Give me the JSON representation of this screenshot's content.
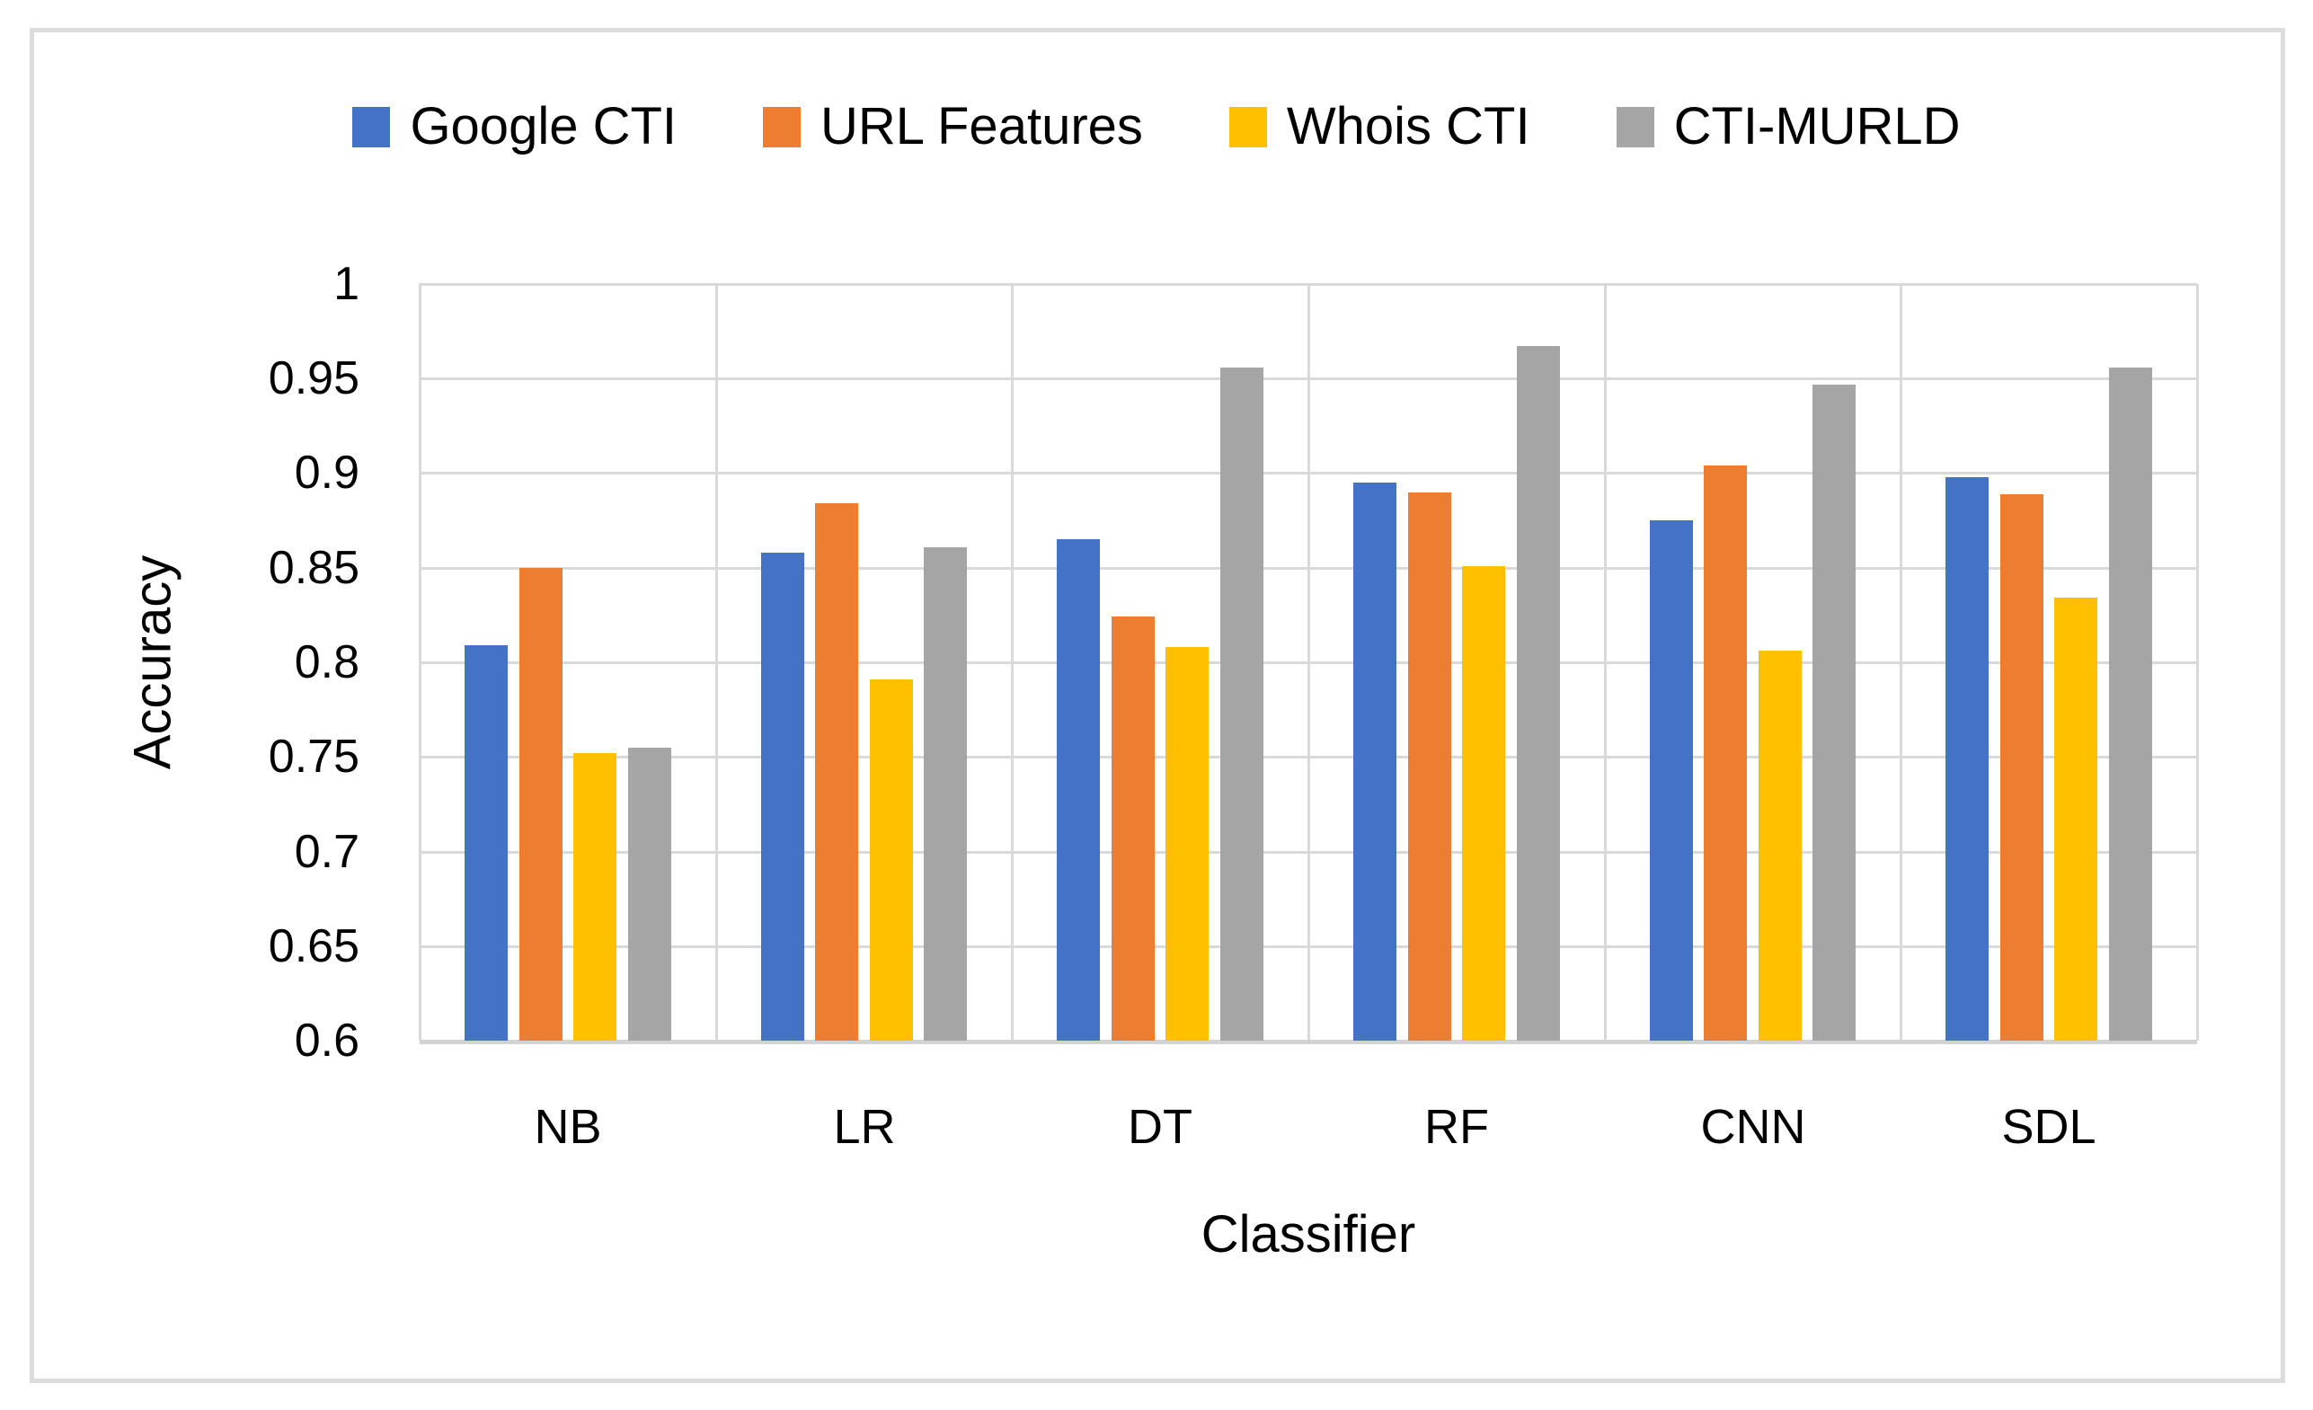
{
  "chart_data": {
    "type": "bar",
    "title": "",
    "xlabel": "Classifier",
    "ylabel": "Accuracy",
    "categories": [
      "NB",
      "LR",
      "DT",
      "RF",
      "CNN",
      "SDL"
    ],
    "series": [
      {
        "name": "Google CTI",
        "color": "#4472C4",
        "values": [
          0.809,
          0.858,
          0.865,
          0.895,
          0.875,
          0.898
        ]
      },
      {
        "name": "URL Features",
        "color": "#ED7D31",
        "values": [
          0.85,
          0.884,
          0.824,
          0.89,
          0.904,
          0.889
        ]
      },
      {
        "name": "Whois CTI",
        "color": "#FFC000",
        "values": [
          0.752,
          0.791,
          0.808,
          0.851,
          0.806,
          0.834
        ]
      },
      {
        "name": "CTI-MURLD",
        "color": "#A5A5A5",
        "values": [
          0.755,
          0.861,
          0.956,
          0.967,
          0.947,
          0.956
        ]
      }
    ],
    "ylim": [
      0.6,
      1.0
    ],
    "ytick_step": 0.05,
    "ytick_labels": [
      "1",
      "0.95",
      "0.9",
      "0.85",
      "0.8",
      "0.75",
      "0.7",
      "0.65",
      "0.6"
    ],
    "grid": true,
    "legend_position": "top"
  }
}
